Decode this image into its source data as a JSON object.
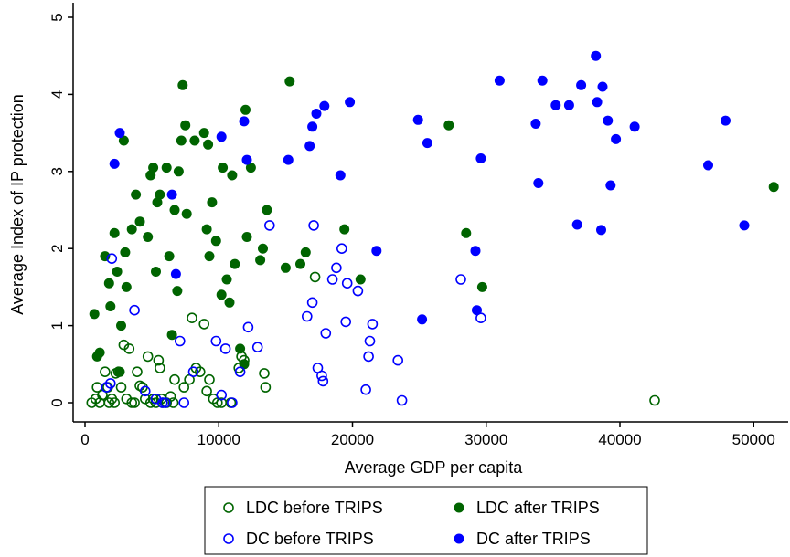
{
  "chart_data": {
    "type": "scatter",
    "title": "",
    "xlabel": "Average GDP per capita",
    "ylabel": "Average Index of IP protection",
    "xlim": [
      0,
      52000
    ],
    "ylim": [
      0,
      5
    ],
    "x_ticks": [
      0,
      10000,
      20000,
      30000,
      40000,
      50000
    ],
    "x_tick_labels": [
      "0",
      "10000",
      "20000",
      "30000",
      "40000",
      "50000"
    ],
    "y_ticks": [
      0,
      1,
      2,
      3,
      4,
      5
    ],
    "y_tick_labels": [
      "0",
      "1",
      "2",
      "3",
      "4",
      "5"
    ],
    "grid": false,
    "legend_position": "bottom",
    "series": [
      {
        "name": "LDC before TRIPS",
        "color": "#006400",
        "marker": "hollow-circle",
        "points": [
          [
            500,
            0
          ],
          [
            800,
            0.05
          ],
          [
            900,
            0.2
          ],
          [
            1100,
            0
          ],
          [
            1300,
            0.1
          ],
          [
            1500,
            0.4
          ],
          [
            1700,
            0.2
          ],
          [
            1800,
            0
          ],
          [
            2000,
            0.05
          ],
          [
            2200,
            0
          ],
          [
            2300,
            0.38
          ],
          [
            2500,
            0.4
          ],
          [
            2700,
            0.2
          ],
          [
            2900,
            0.75
          ],
          [
            3100,
            0.05
          ],
          [
            3300,
            0.7
          ],
          [
            3500,
            0
          ],
          [
            3700,
            0
          ],
          [
            3900,
            0.4
          ],
          [
            4100,
            0.22
          ],
          [
            4300,
            0.2
          ],
          [
            4500,
            0.05
          ],
          [
            4700,
            0.6
          ],
          [
            4900,
            0
          ],
          [
            5100,
            0.05
          ],
          [
            5300,
            0
          ],
          [
            5500,
            0.55
          ],
          [
            5600,
            0.45
          ],
          [
            5700,
            0.05
          ],
          [
            5800,
            0
          ],
          [
            6100,
            0
          ],
          [
            6400,
            0.08
          ],
          [
            6600,
            0
          ],
          [
            6700,
            0.3
          ],
          [
            7400,
            0.2
          ],
          [
            7800,
            0.3
          ],
          [
            8000,
            1.1
          ],
          [
            8300,
            0.45
          ],
          [
            8600,
            0.4
          ],
          [
            8900,
            1.02
          ],
          [
            9100,
            0.15
          ],
          [
            9300,
            0.3
          ],
          [
            9600,
            0.05
          ],
          [
            9900,
            0
          ],
          [
            10200,
            0
          ],
          [
            10900,
            0
          ],
          [
            11500,
            0.45
          ],
          [
            11700,
            0.6
          ],
          [
            11900,
            0.55
          ],
          [
            13400,
            0.38
          ],
          [
            13500,
            0.2
          ],
          [
            17200,
            1.63
          ],
          [
            42600,
            0.03
          ]
        ]
      },
      {
        "name": "LDC after TRIPS",
        "color": "#006400",
        "marker": "filled-circle",
        "points": [
          [
            700,
            1.15
          ],
          [
            900,
            0.6
          ],
          [
            1100,
            0.65
          ],
          [
            1500,
            1.9
          ],
          [
            1800,
            1.55
          ],
          [
            1900,
            1.25
          ],
          [
            2200,
            2.2
          ],
          [
            2400,
            1.7
          ],
          [
            2600,
            0.4
          ],
          [
            2700,
            1.0
          ],
          [
            2900,
            3.4
          ],
          [
            3000,
            1.95
          ],
          [
            3100,
            1.5
          ],
          [
            3500,
            2.25
          ],
          [
            3800,
            2.7
          ],
          [
            4100,
            2.35
          ],
          [
            4700,
            2.15
          ],
          [
            4900,
            2.95
          ],
          [
            5100,
            3.05
          ],
          [
            5300,
            1.7
          ],
          [
            5400,
            2.6
          ],
          [
            5600,
            2.7
          ],
          [
            6100,
            3.05
          ],
          [
            6300,
            1.9
          ],
          [
            6500,
            0.88
          ],
          [
            6700,
            2.5
          ],
          [
            6900,
            1.45
          ],
          [
            7000,
            3.0
          ],
          [
            7200,
            3.4
          ],
          [
            7300,
            4.12
          ],
          [
            7500,
            3.6
          ],
          [
            7600,
            2.45
          ],
          [
            8200,
            3.4
          ],
          [
            8900,
            3.5
          ],
          [
            9100,
            2.25
          ],
          [
            9200,
            3.35
          ],
          [
            9300,
            1.9
          ],
          [
            9500,
            2.6
          ],
          [
            9800,
            2.1
          ],
          [
            10200,
            1.4
          ],
          [
            10300,
            3.05
          ],
          [
            10600,
            1.6
          ],
          [
            10800,
            1.3
          ],
          [
            11000,
            2.95
          ],
          [
            11200,
            1.8
          ],
          [
            11600,
            0.7
          ],
          [
            11900,
            0.5
          ],
          [
            12000,
            3.8
          ],
          [
            12100,
            2.15
          ],
          [
            12400,
            3.05
          ],
          [
            13100,
            1.85
          ],
          [
            13300,
            2.0
          ],
          [
            13600,
            2.5
          ],
          [
            15000,
            1.75
          ],
          [
            15300,
            4.17
          ],
          [
            16100,
            1.8
          ],
          [
            16500,
            1.95
          ],
          [
            19400,
            2.25
          ],
          [
            20600,
            1.6
          ],
          [
            27200,
            3.6
          ],
          [
            28500,
            2.2
          ],
          [
            29700,
            1.5
          ],
          [
            51500,
            2.8
          ]
        ]
      },
      {
        "name": "DC before TRIPS",
        "color": "#0000ff",
        "marker": "hollow-circle",
        "points": [
          [
            1600,
            0.2
          ],
          [
            1900,
            0.25
          ],
          [
            2000,
            1.87
          ],
          [
            3700,
            1.2
          ],
          [
            4500,
            0.15
          ],
          [
            5300,
            0.05
          ],
          [
            5800,
            0
          ],
          [
            6000,
            0
          ],
          [
            7100,
            0.8
          ],
          [
            7400,
            0
          ],
          [
            8100,
            0.4
          ],
          [
            9800,
            0.8
          ],
          [
            10200,
            0.1
          ],
          [
            10500,
            0.7
          ],
          [
            11000,
            0
          ],
          [
            11600,
            0.4
          ],
          [
            12200,
            0.98
          ],
          [
            12900,
            0.72
          ],
          [
            13800,
            2.3
          ],
          [
            16600,
            1.12
          ],
          [
            17000,
            1.3
          ],
          [
            17100,
            2.3
          ],
          [
            17400,
            0.45
          ],
          [
            17700,
            0.35
          ],
          [
            17800,
            0.28
          ],
          [
            18000,
            0.9
          ],
          [
            18500,
            1.6
          ],
          [
            18800,
            1.75
          ],
          [
            19200,
            2.0
          ],
          [
            19500,
            1.05
          ],
          [
            19600,
            1.55
          ],
          [
            20400,
            1.45
          ],
          [
            21000,
            0.17
          ],
          [
            21200,
            0.6
          ],
          [
            21300,
            0.8
          ],
          [
            21500,
            1.02
          ],
          [
            23400,
            0.55
          ],
          [
            23700,
            0.03
          ],
          [
            28100,
            1.6
          ],
          [
            29600,
            1.1
          ]
        ]
      },
      {
        "name": "DC after TRIPS",
        "color": "#0000ff",
        "marker": "filled-circle",
        "points": [
          [
            2200,
            3.1
          ],
          [
            2600,
            3.5
          ],
          [
            6500,
            2.7
          ],
          [
            6800,
            1.67
          ],
          [
            10200,
            3.45
          ],
          [
            11900,
            3.65
          ],
          [
            12100,
            3.15
          ],
          [
            15200,
            3.15
          ],
          [
            16800,
            3.33
          ],
          [
            17000,
            3.58
          ],
          [
            17300,
            3.75
          ],
          [
            17900,
            3.85
          ],
          [
            19100,
            2.95
          ],
          [
            19800,
            3.9
          ],
          [
            21800,
            1.97
          ],
          [
            24900,
            3.67
          ],
          [
            25200,
            1.08
          ],
          [
            25600,
            3.37
          ],
          [
            29200,
            1.97
          ],
          [
            29300,
            1.2
          ],
          [
            29600,
            3.17
          ],
          [
            31000,
            4.18
          ],
          [
            33700,
            3.62
          ],
          [
            33900,
            2.85
          ],
          [
            34200,
            4.18
          ],
          [
            35200,
            3.86
          ],
          [
            36200,
            3.86
          ],
          [
            36800,
            2.31
          ],
          [
            37100,
            4.12
          ],
          [
            38200,
            4.5
          ],
          [
            38300,
            3.9
          ],
          [
            38600,
            2.24
          ],
          [
            38700,
            4.1
          ],
          [
            39100,
            3.66
          ],
          [
            39300,
            2.82
          ],
          [
            39700,
            3.42
          ],
          [
            41100,
            3.58
          ],
          [
            46600,
            3.08
          ],
          [
            47900,
            3.66
          ],
          [
            49300,
            2.3
          ]
        ]
      }
    ]
  }
}
